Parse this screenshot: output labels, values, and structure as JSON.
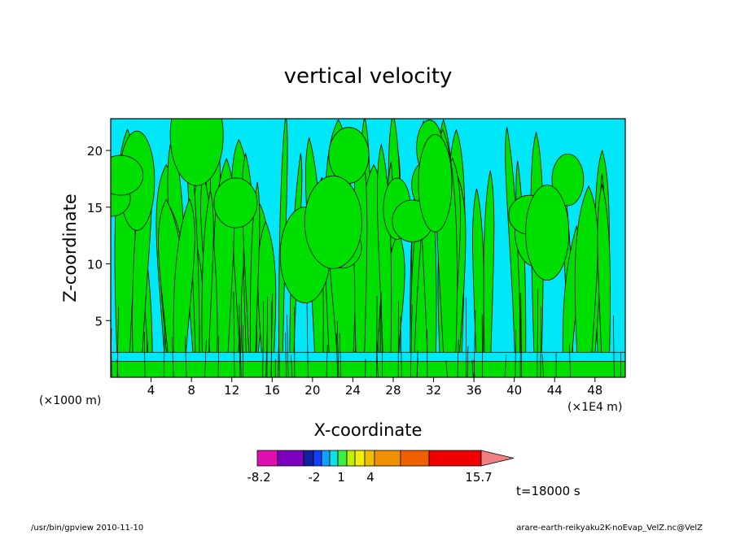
{
  "chart_data": {
    "type": "contour",
    "title": "vertical velocity",
    "xlabel": "X-coordinate",
    "ylabel": "Z-coordinate",
    "x_unit": "(×1E4 m)",
    "y_unit": "(×1000 m)",
    "xlim": [
      0,
      51
    ],
    "ylim": [
      0,
      22.8
    ],
    "xticks": [
      4,
      8,
      12,
      16,
      20,
      24,
      28,
      32,
      36,
      40,
      44,
      48
    ],
    "yticks": [
      5,
      10,
      15,
      20
    ],
    "colorbar": {
      "colors": [
        "#e010b0",
        "#8000c0",
        "#1020a0",
        "#1040ff",
        "#10a0ff",
        "#10e0e0",
        "#40f040",
        "#c0f000",
        "#f0f000",
        "#f0c000",
        "#f09000",
        "#f06000",
        "#f00000",
        "#f08080",
        "#ffc0c0"
      ],
      "tick_labels": [
        "-8.2",
        "-2",
        "1",
        "4",
        "15.7"
      ]
    },
    "time_label": "t=18000 s",
    "contour_colors": {
      "negative": "#00e8f8",
      "positive": "#00e000"
    }
  },
  "footer": {
    "left": "/usr/bin/gpview   2010-11-10",
    "right": "arare-earth-reikyaku2K-noEvap_VelZ.nc@VelZ"
  }
}
